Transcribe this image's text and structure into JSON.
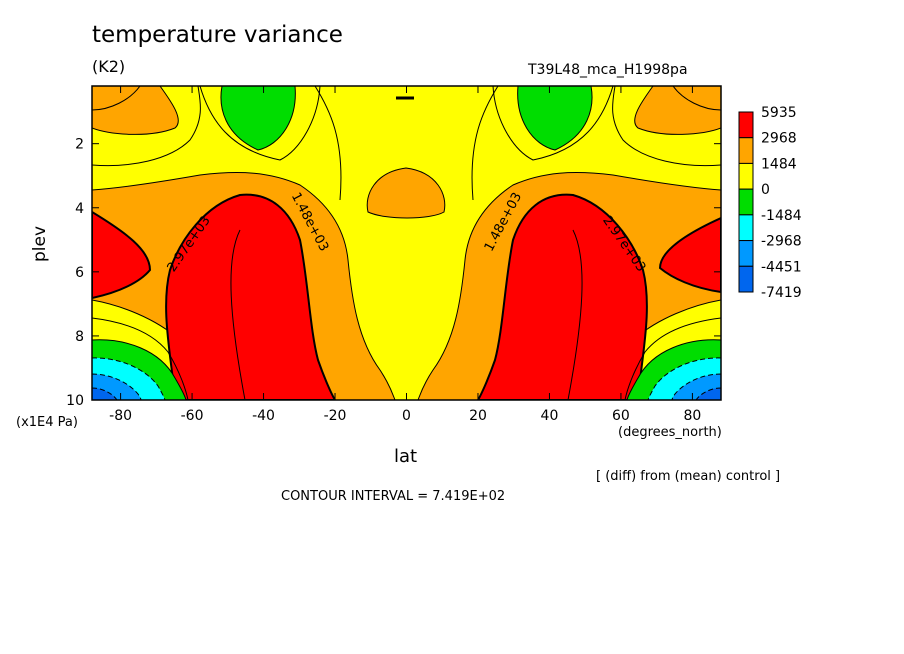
{
  "chart_data": {
    "type": "contour",
    "title": "temperature variance",
    "units": "(K2)",
    "run_label": "T39L48_mca_H1998pa",
    "xlabel": "lat",
    "x_units": "(degrees_north)",
    "ylabel": "plev",
    "y_units": "(x1E4 Pa)",
    "comparison_note": "[ (diff) from (mean) control ]",
    "contour_interval": "CONTOUR INTERVAL = 7.419E+02",
    "xlim": [
      -88,
      88
    ],
    "ylim": [
      10,
      0.2
    ],
    "x_ticks": [
      -80,
      -60,
      -40,
      -20,
      0,
      20,
      40,
      60,
      80
    ],
    "y_ticks": [
      2,
      4,
      6,
      8,
      10
    ],
    "colorbar": {
      "levels": [
        "5935",
        "2968",
        "1484",
        "0",
        "-1484",
        "-2968",
        "-4451",
        "-7419"
      ],
      "colors": [
        "#ff0000",
        "#ffa500",
        "#ffff00",
        "#00dd00",
        "#00ffff",
        "#0099ff",
        "#0066ee"
      ]
    },
    "contour_labels": [
      "2.97e+03",
      "1.48e+03",
      "1.48e+03",
      "2.97e+03"
    ],
    "series": [
      {
        "region": "yellow",
        "value_range": [
          0,
          1484
        ],
        "points": [
          [
            -60,
            10
          ],
          [
            -88,
            7.5
          ],
          [
            -70,
            2.6
          ],
          [
            -25,
            1.8
          ],
          [
            0,
            2.4
          ],
          [
            25,
            1.8
          ],
          [
            70,
            2.6
          ],
          [
            88,
            7.5
          ],
          [
            60,
            10
          ]
        ]
      },
      {
        "region": "orange",
        "value_range": [
          1484,
          2968
        ],
        "points": [
          [
            -55,
            10
          ],
          [
            -88,
            4.6
          ],
          [
            -50,
            3.0
          ],
          [
            -18,
            4.4
          ],
          [
            -12,
            10
          ],
          [
            12,
            10
          ],
          [
            18,
            4.4
          ],
          [
            50,
            3.0
          ],
          [
            88,
            4.6
          ],
          [
            55,
            10
          ]
        ]
      },
      {
        "region": "red",
        "value_range": [
          2968,
          5935
        ],
        "points": [
          [
            -50,
            10
          ],
          [
            -68,
            6.0
          ],
          [
            -45,
            3.5
          ],
          [
            -25,
            5.5
          ],
          [
            -25,
            10
          ],
          [
            25,
            10
          ],
          [
            25,
            5.5
          ],
          [
            45,
            3.5
          ],
          [
            68,
            6.0
          ],
          [
            50,
            10
          ]
        ]
      },
      {
        "region": "green",
        "value_range": [
          -1484,
          0
        ],
        "points": [
          [
            -40,
            0.2
          ],
          [
            -40,
            2.3
          ],
          [
            -28,
            0.2
          ],
          [
            28,
            0.2
          ],
          [
            40,
            2.3
          ],
          [
            40,
            0.2
          ],
          [
            -88,
            8.2
          ],
          [
            88,
            8.2
          ]
        ]
      },
      {
        "region": "cyan",
        "value_range": [
          -2968,
          -1484
        ],
        "points": [
          [
            -88,
            8.8
          ],
          [
            88,
            8.8
          ]
        ]
      },
      {
        "region": "blue",
        "value_range": [
          -7419,
          -2968
        ],
        "points": [
          [
            -88,
            9.5
          ],
          [
            88,
            9.5
          ]
        ]
      }
    ]
  }
}
